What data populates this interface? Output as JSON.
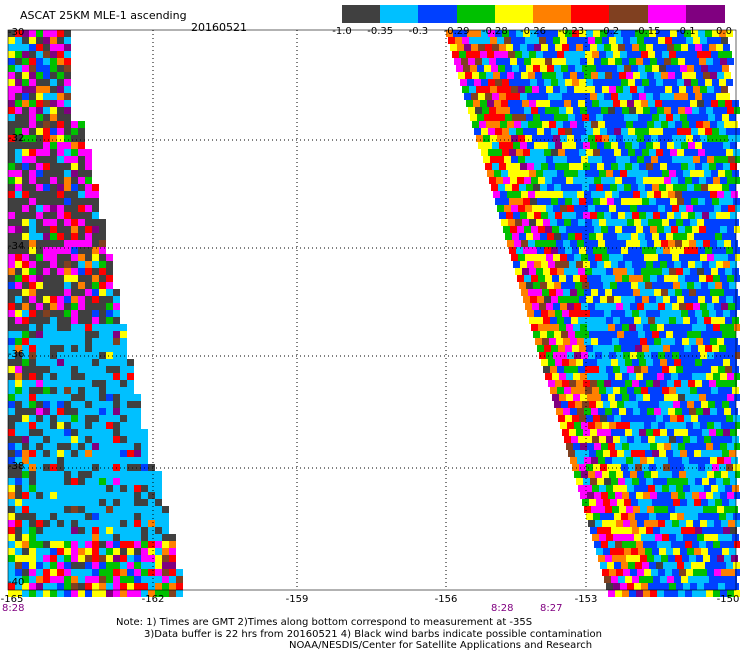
{
  "header": {
    "title": "ASCAT 25KM MLE-1 ascending",
    "date": "20160521"
  },
  "colorbar": {
    "colors": [
      "#404040",
      "#00c0ff",
      "#0040ff",
      "#00c000",
      "#ffff00",
      "#ff8000",
      "#ff0000",
      "#804020",
      "#ff00ff",
      "#800080"
    ],
    "labels": [
      "-1.0",
      "-0.35",
      "-0.3",
      "-0.29",
      "-0.28",
      "-0.26",
      "-0.23",
      "-0.2",
      "-0.15",
      "-0.1",
      "0.0"
    ]
  },
  "axes": {
    "lat_labels": [
      "-30",
      "-32",
      "-34",
      "-36",
      "-38",
      "-40"
    ],
    "lon_labels": [
      "-165",
      "-162",
      "-159",
      "-156",
      "-153",
      "-150"
    ]
  },
  "time_markers": [
    {
      "label": "8:28"
    },
    {
      "label": "8:28"
    },
    {
      "label": "8:27"
    }
  ],
  "footer": {
    "note_line1": "Note: 1) Times are GMT 2)Times along bottom correspond to measurement at -35S",
    "note_line2": "3)Data buffer is 22 hrs from 20160521 4) Black wind barbs indicate possible contamination",
    "credit": "NOAA/NESDIS/Center for Satellite Applications and Research"
  }
}
